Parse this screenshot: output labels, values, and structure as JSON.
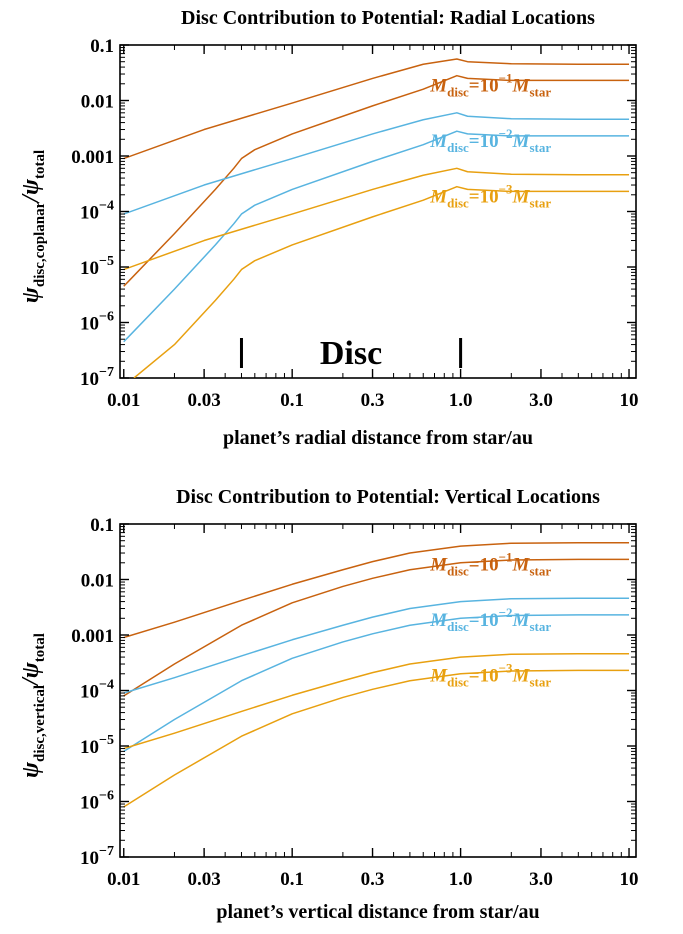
{
  "colors": {
    "mdisc_1e-1": "#c8620f",
    "mdisc_1e-2": "#58b4e0",
    "mdisc_1e-3": "#e8a010",
    "axis": "#000000"
  },
  "chart_data": [
    {
      "type": "line",
      "title": "Disc Contribution to Potential: Radial Locations",
      "xlabel": "planet’s radial distance from star/au",
      "ylabel_main": "ψ",
      "ylabel_main_sub": "disc,coplanar",
      "ylabel_den": "/ψ",
      "ylabel_den_sub": "total",
      "xscale": "log",
      "yscale": "log",
      "xlim": [
        0.0095,
        11
      ],
      "ylim": [
        1e-07,
        0.1
      ],
      "xticks": [
        0.01,
        0.03,
        0.1,
        0.3,
        1.0,
        3.0,
        10
      ],
      "xtick_labels": [
        "0.01",
        "0.03",
        "0.1",
        "0.3",
        "1.0",
        "3.0",
        "10"
      ],
      "yticks": [
        1e-07,
        1e-06,
        1e-05,
        0.0001,
        0.001,
        0.01,
        0.1
      ],
      "ytick_labels": [
        {
          "base": "10",
          "exp": "−7"
        },
        {
          "base": "10",
          "exp": "−6"
        },
        {
          "base": "10",
          "exp": "−5"
        },
        {
          "base": "10",
          "exp": "−4"
        },
        {
          "base": "0.001",
          "exp": ""
        },
        {
          "base": "0.01",
          "exp": ""
        },
        {
          "base": "0.1",
          "exp": ""
        }
      ],
      "disc_region": {
        "label": "Disc",
        "inner": 0.05,
        "outer": 1.0
      },
      "annotations": [
        {
          "color_key": "mdisc_1e-1",
          "prefix": "M",
          "sub1": "disc",
          "mid": "=10",
          "exp": "−1",
          "m2": "M",
          "sub2": "star",
          "x": 0.66,
          "y": 0.0145
        },
        {
          "color_key": "mdisc_1e-2",
          "prefix": "M",
          "sub1": "disc",
          "mid": "=10",
          "exp": "−2",
          "m2": "M",
          "sub2": "star",
          "x": 0.66,
          "y": 0.00145
        },
        {
          "color_key": "mdisc_1e-3",
          "prefix": "M",
          "sub1": "disc",
          "mid": "=10",
          "exp": "−3",
          "m2": "M",
          "sub2": "star",
          "x": 0.66,
          "y": 0.000145
        }
      ],
      "series": [
        {
          "color_key": "mdisc_1e-1",
          "x": [
            0.01,
            0.03,
            0.1,
            0.3,
            0.6,
            0.95,
            1.1,
            2,
            5,
            10
          ],
          "y": [
            0.0009,
            0.003,
            0.009,
            0.025,
            0.045,
            0.056,
            0.05,
            0.046,
            0.045,
            0.045
          ]
        },
        {
          "color_key": "mdisc_1e-1",
          "x": [
            0.01,
            0.02,
            0.035,
            0.045,
            0.05,
            0.06,
            0.1,
            0.3,
            0.6,
            0.95,
            1.1,
            2,
            5,
            10
          ],
          "y": [
            4.5e-06,
            4e-05,
            0.00025,
            0.0006,
            0.0009,
            0.0013,
            0.0025,
            0.008,
            0.016,
            0.028,
            0.025,
            0.023,
            0.023,
            0.023
          ]
        },
        {
          "color_key": "mdisc_1e-2",
          "x": [
            0.01,
            0.03,
            0.1,
            0.3,
            0.6,
            0.95,
            1.1,
            2,
            5,
            10
          ],
          "y": [
            9e-05,
            0.0003,
            0.0009,
            0.0025,
            0.0045,
            0.006,
            0.0052,
            0.0047,
            0.0046,
            0.0046
          ]
        },
        {
          "color_key": "mdisc_1e-2",
          "x": [
            0.01,
            0.02,
            0.035,
            0.045,
            0.05,
            0.06,
            0.1,
            0.3,
            0.6,
            0.95,
            1.1,
            2,
            5,
            10
          ],
          "y": [
            4.5e-07,
            4e-06,
            2.5e-05,
            6e-05,
            9e-05,
            0.00013,
            0.00025,
            0.0008,
            0.0016,
            0.0028,
            0.0025,
            0.0023,
            0.0023,
            0.0023
          ]
        },
        {
          "color_key": "mdisc_1e-3",
          "x": [
            0.01,
            0.03,
            0.1,
            0.3,
            0.6,
            0.95,
            1.1,
            2,
            5,
            10
          ],
          "y": [
            9e-06,
            3e-05,
            9e-05,
            0.00025,
            0.00045,
            0.0006,
            0.00052,
            0.00047,
            0.00046,
            0.00046
          ]
        },
        {
          "color_key": "mdisc_1e-3",
          "x": [
            0.0115,
            0.02,
            0.035,
            0.045,
            0.05,
            0.06,
            0.1,
            0.3,
            0.6,
            0.95,
            1.1,
            2,
            5,
            10
          ],
          "y": [
            1e-07,
            4e-07,
            2.5e-06,
            6e-06,
            9e-06,
            1.3e-05,
            2.5e-05,
            8e-05,
            0.00016,
            0.00028,
            0.00025,
            0.00023,
            0.00023,
            0.00023
          ]
        }
      ]
    },
    {
      "type": "line",
      "title": "Disc Contribution to Potential: Vertical Locations",
      "xlabel": "planet’s vertical distance from star/au",
      "ylabel_main": "ψ",
      "ylabel_main_sub": "disc,vertical",
      "ylabel_den": "/ψ",
      "ylabel_den_sub": "total",
      "xscale": "log",
      "yscale": "log",
      "xlim": [
        0.0095,
        11
      ],
      "ylim": [
        1e-07,
        0.1
      ],
      "xticks": [
        0.01,
        0.03,
        0.1,
        0.3,
        1.0,
        3.0,
        10
      ],
      "xtick_labels": [
        "0.01",
        "0.03",
        "0.1",
        "0.3",
        "1.0",
        "3.0",
        "10"
      ],
      "yticks": [
        1e-07,
        1e-06,
        1e-05,
        0.0001,
        0.001,
        0.01,
        0.1
      ],
      "ytick_labels": [
        {
          "base": "10",
          "exp": "−7"
        },
        {
          "base": "10",
          "exp": "−6"
        },
        {
          "base": "10",
          "exp": "−5"
        },
        {
          "base": "10",
          "exp": "−4"
        },
        {
          "base": "0.001",
          "exp": ""
        },
        {
          "base": "0.01",
          "exp": ""
        },
        {
          "base": "0.1",
          "exp": ""
        }
      ],
      "annotations": [
        {
          "color_key": "mdisc_1e-1",
          "prefix": "M",
          "sub1": "disc",
          "mid": "=10",
          "exp": "−1",
          "m2": "M",
          "sub2": "star",
          "x": 0.66,
          "y": 0.0145
        },
        {
          "color_key": "mdisc_1e-2",
          "prefix": "M",
          "sub1": "disc",
          "mid": "=10",
          "exp": "−2",
          "m2": "M",
          "sub2": "star",
          "x": 0.66,
          "y": 0.00145
        },
        {
          "color_key": "mdisc_1e-3",
          "prefix": "M",
          "sub1": "disc",
          "mid": "=10",
          "exp": "−3",
          "m2": "M",
          "sub2": "star",
          "x": 0.66,
          "y": 0.000145
        }
      ],
      "series": [
        {
          "color_key": "mdisc_1e-1",
          "x": [
            0.01,
            0.02,
            0.05,
            0.1,
            0.2,
            0.3,
            0.5,
            1,
            2,
            5,
            10
          ],
          "y": [
            0.0009,
            0.0017,
            0.0042,
            0.0082,
            0.015,
            0.021,
            0.03,
            0.04,
            0.045,
            0.046,
            0.046
          ]
        },
        {
          "color_key": "mdisc_1e-1",
          "x": [
            0.01,
            0.02,
            0.05,
            0.1,
            0.2,
            0.3,
            0.5,
            1,
            2,
            5,
            10
          ],
          "y": [
            8e-05,
            0.0003,
            0.0015,
            0.0038,
            0.0075,
            0.0105,
            0.015,
            0.02,
            0.0225,
            0.023,
            0.023
          ]
        },
        {
          "color_key": "mdisc_1e-2",
          "x": [
            0.01,
            0.02,
            0.05,
            0.1,
            0.2,
            0.3,
            0.5,
            1,
            2,
            5,
            10
          ],
          "y": [
            9e-05,
            0.00017,
            0.00042,
            0.00082,
            0.0015,
            0.0021,
            0.003,
            0.004,
            0.0045,
            0.0046,
            0.0046
          ]
        },
        {
          "color_key": "mdisc_1e-2",
          "x": [
            0.01,
            0.02,
            0.05,
            0.1,
            0.2,
            0.3,
            0.5,
            1,
            2,
            5,
            10
          ],
          "y": [
            8e-06,
            3e-05,
            0.00015,
            0.00038,
            0.00075,
            0.00105,
            0.0015,
            0.002,
            0.00225,
            0.0023,
            0.0023
          ]
        },
        {
          "color_key": "mdisc_1e-3",
          "x": [
            0.01,
            0.02,
            0.05,
            0.1,
            0.2,
            0.3,
            0.5,
            1,
            2,
            5,
            10
          ],
          "y": [
            9e-06,
            1.7e-05,
            4.2e-05,
            8.2e-05,
            0.00015,
            0.00021,
            0.0003,
            0.0004,
            0.00045,
            0.00046,
            0.00046
          ]
        },
        {
          "color_key": "mdisc_1e-3",
          "x": [
            0.01,
            0.02,
            0.05,
            0.1,
            0.2,
            0.3,
            0.5,
            1,
            2,
            5,
            10
          ],
          "y": [
            8e-07,
            3e-06,
            1.5e-05,
            3.8e-05,
            7.5e-05,
            0.000105,
            0.00015,
            0.0002,
            0.000225,
            0.00023,
            0.00023
          ]
        }
      ]
    }
  ]
}
